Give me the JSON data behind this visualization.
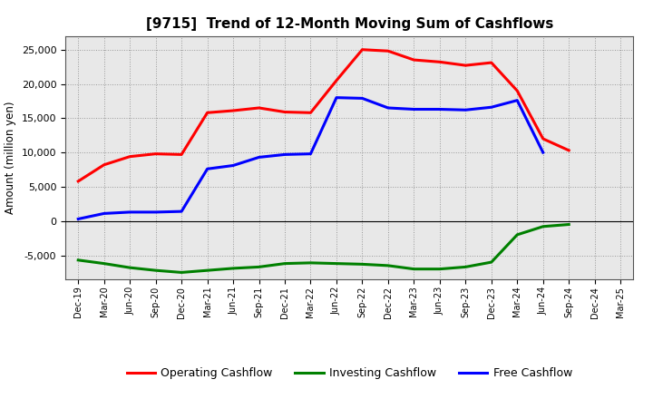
{
  "title": "[9715]  Trend of 12-Month Moving Sum of Cashflows",
  "ylabel": "Amount (million yen)",
  "xlabels": [
    "Dec-19",
    "Mar-20",
    "Jun-20",
    "Sep-20",
    "Dec-20",
    "Mar-21",
    "Jun-21",
    "Sep-21",
    "Dec-21",
    "Mar-22",
    "Jun-22",
    "Sep-22",
    "Dec-22",
    "Mar-23",
    "Jun-23",
    "Sep-23",
    "Dec-23",
    "Mar-24",
    "Jun-24",
    "Sep-24",
    "Dec-24",
    "Mar-25"
  ],
  "operating_cashflow": [
    5800,
    8200,
    9400,
    9800,
    9700,
    15800,
    16100,
    16500,
    15900,
    15800,
    20500,
    25000,
    24800,
    23500,
    23200,
    22700,
    23100,
    19000,
    12000,
    10300,
    null,
    null
  ],
  "investing_cashflow": [
    -5700,
    -6200,
    -6800,
    -7200,
    -7500,
    -7200,
    -6900,
    -6700,
    -6200,
    -6100,
    -6200,
    -6300,
    -6500,
    -7000,
    -7000,
    -6700,
    -6000,
    -2000,
    -800,
    -500,
    null,
    null
  ],
  "free_cashflow": [
    300,
    1100,
    1300,
    1300,
    1400,
    7600,
    8100,
    9300,
    9700,
    9800,
    18000,
    17900,
    16500,
    16300,
    16300,
    16200,
    16600,
    17600,
    10000,
    null,
    null,
    null
  ],
  "operating_color": "#ff0000",
  "investing_color": "#008000",
  "free_color": "#0000ff",
  "ylim": [
    -8500,
    27000
  ],
  "yticks": [
    -5000,
    0,
    5000,
    10000,
    15000,
    20000,
    25000
  ],
  "background_color": "#ffffff",
  "plot_bg_color": "#e8e8e8",
  "grid_color": "#999999",
  "title_fontsize": 11,
  "legend_fontsize": 9
}
